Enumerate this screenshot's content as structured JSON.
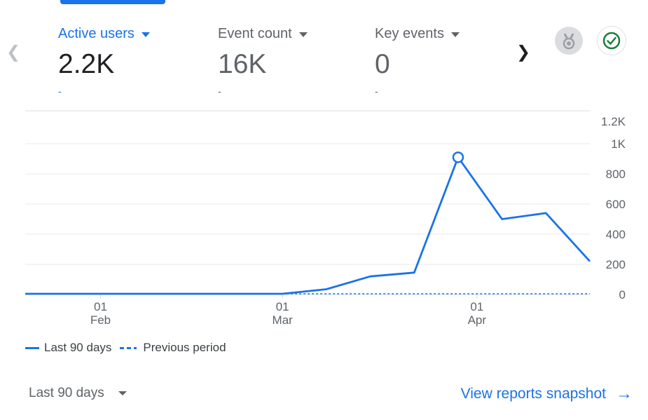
{
  "nav": {
    "prev_icon": "chevron-left-icon",
    "next_icon": "chevron-right-icon"
  },
  "metrics": [
    {
      "label": "Active users",
      "value": "2.2K",
      "delta": "-",
      "active": true
    },
    {
      "label": "Event count",
      "value": "16K",
      "delta": "-",
      "active": false
    },
    {
      "label": "Key events",
      "value": "0",
      "delta": "-",
      "active": false
    }
  ],
  "badges": {
    "medal_icon": "medal-icon",
    "check_icon": "check-circle-icon"
  },
  "colors": {
    "accent": "#1a73e8",
    "grid": "#e8eaed",
    "text": "#3c4043",
    "muted": "#5f6368",
    "check": "#188038"
  },
  "chart_data": {
    "type": "line",
    "y_ticks": [
      "1.2K",
      "1K",
      "800",
      "600",
      "400",
      "200",
      "0"
    ],
    "ylim": [
      0,
      1200
    ],
    "grid": true,
    "x_ticks": [
      {
        "day": "01",
        "month": "Feb"
      },
      {
        "day": "01",
        "month": "Mar"
      },
      {
        "day": "01",
        "month": "Apr"
      }
    ],
    "series": [
      {
        "name": "Last 90 days",
        "style": "solid",
        "points": [
          [
            "2024-01-20",
            0
          ],
          [
            "2024-01-27",
            0
          ],
          [
            "2024-02-03",
            0
          ],
          [
            "2024-02-10",
            0
          ],
          [
            "2024-02-17",
            0
          ],
          [
            "2024-02-24",
            0
          ],
          [
            "2024-03-01",
            0
          ],
          [
            "2024-03-08",
            35
          ],
          [
            "2024-03-15",
            120
          ],
          [
            "2024-03-22",
            145
          ],
          [
            "2024-03-29",
            910
          ],
          [
            "2024-04-05",
            500
          ],
          [
            "2024-04-12",
            540
          ],
          [
            "2024-04-19",
            220
          ]
        ],
        "highlight": [
          "2024-03-29",
          910
        ]
      },
      {
        "name": "Previous period",
        "style": "dashed",
        "points": [
          [
            "2024-03-01",
            0
          ],
          [
            "2024-04-19",
            0
          ]
        ]
      }
    ],
    "legend": [
      {
        "label": "Last 90 days",
        "style": "solid"
      },
      {
        "label": "Previous period",
        "style": "dashed"
      }
    ],
    "legend_position": "bottom-left"
  },
  "footer": {
    "period_label": "Last 90 days",
    "snapshot_label": "View reports snapshot"
  }
}
